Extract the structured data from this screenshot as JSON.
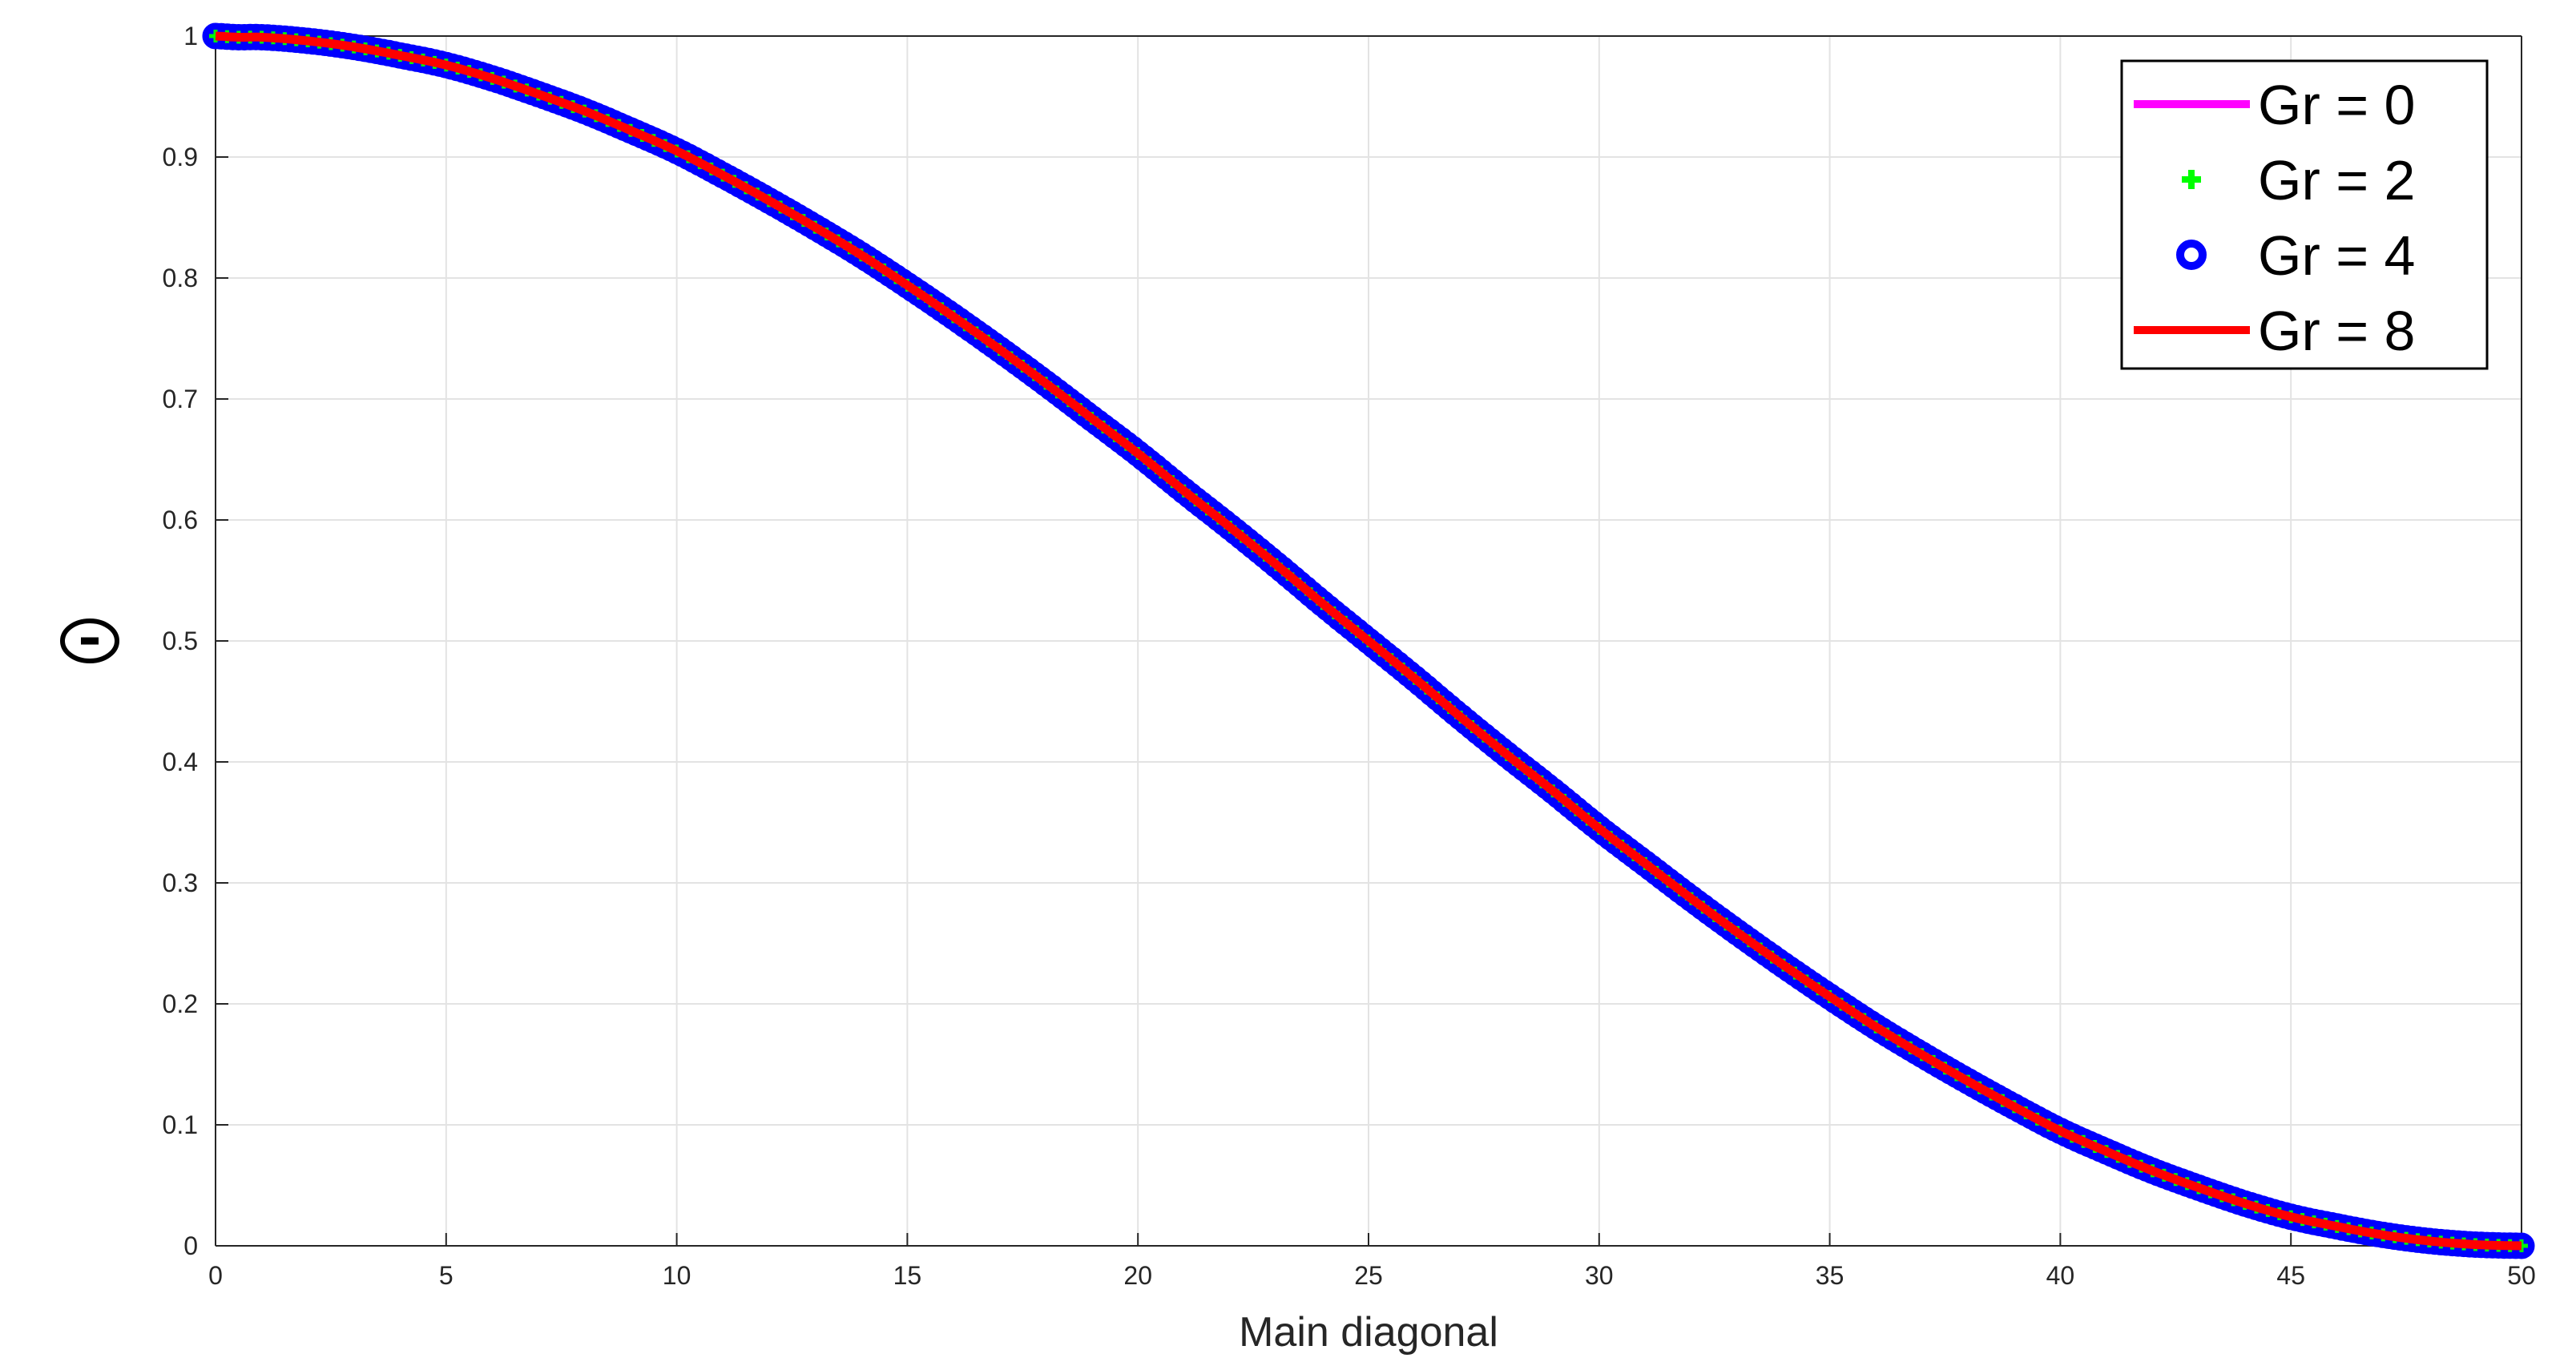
{
  "chart_data": {
    "type": "line",
    "title": "",
    "xlabel": "Main diagonal",
    "ylabel": "Θ",
    "xlim": [
      0,
      50
    ],
    "ylim": [
      0,
      1
    ],
    "xticks": [
      0,
      5,
      10,
      15,
      20,
      25,
      30,
      35,
      40,
      45,
      50
    ],
    "yticks": [
      0,
      0.1,
      0.2,
      0.3,
      0.4,
      0.5,
      0.6,
      0.7,
      0.8,
      0.9,
      1
    ],
    "xtick_labels": [
      "0",
      "5",
      "10",
      "15",
      "20",
      "25",
      "30",
      "35",
      "40",
      "45",
      "50"
    ],
    "ytick_labels": [
      "0",
      "0.1",
      "0.2",
      "0.3",
      "0.4",
      "0.5",
      "0.6",
      "0.7",
      "0.8",
      "0.9",
      "1"
    ],
    "grid": true,
    "legend_position": "top-right",
    "x": [
      0,
      0.5,
      1,
      2,
      3,
      4,
      5,
      6,
      7,
      8,
      9,
      10,
      11,
      12,
      13,
      14,
      15,
      16,
      17,
      18,
      19,
      20,
      21,
      22,
      23,
      24,
      25,
      26,
      27,
      28,
      29,
      30,
      31,
      32,
      33,
      34,
      35,
      36,
      37,
      38,
      39,
      40,
      41,
      42,
      43,
      44,
      45,
      46,
      47,
      48,
      49,
      50
    ],
    "series": [
      {
        "name": "Gr = 0",
        "style": "line",
        "color": "#ff00ff",
        "values": [
          1,
          0.999,
          0.999,
          0.996,
          0.991,
          0.984,
          0.976,
          0.965,
          0.952,
          0.938,
          0.922,
          0.905,
          0.885,
          0.864,
          0.842,
          0.819,
          0.794,
          0.768,
          0.741,
          0.713,
          0.684,
          0.655,
          0.624,
          0.594,
          0.563,
          0.531,
          0.5,
          0.469,
          0.437,
          0.406,
          0.376,
          0.345,
          0.316,
          0.287,
          0.259,
          0.232,
          0.206,
          0.181,
          0.158,
          0.136,
          0.115,
          0.095,
          0.078,
          0.062,
          0.048,
          0.035,
          0.024,
          0.016,
          0.009,
          0.004,
          0.001,
          0
        ]
      },
      {
        "name": "Gr = 2",
        "style": "markers-plus",
        "color": "#00ff00",
        "values": [
          1,
          0.999,
          0.999,
          0.996,
          0.991,
          0.984,
          0.976,
          0.965,
          0.952,
          0.938,
          0.922,
          0.905,
          0.885,
          0.864,
          0.842,
          0.819,
          0.794,
          0.768,
          0.741,
          0.713,
          0.684,
          0.655,
          0.624,
          0.594,
          0.563,
          0.531,
          0.5,
          0.469,
          0.437,
          0.406,
          0.376,
          0.345,
          0.316,
          0.287,
          0.259,
          0.232,
          0.206,
          0.181,
          0.158,
          0.136,
          0.115,
          0.095,
          0.078,
          0.062,
          0.048,
          0.035,
          0.024,
          0.016,
          0.009,
          0.004,
          0.001,
          0
        ]
      },
      {
        "name": "Gr = 4",
        "style": "markers-circle",
        "color": "#0000ff",
        "values": [
          1,
          0.999,
          0.999,
          0.996,
          0.991,
          0.984,
          0.976,
          0.965,
          0.952,
          0.938,
          0.922,
          0.905,
          0.885,
          0.864,
          0.842,
          0.819,
          0.794,
          0.768,
          0.741,
          0.713,
          0.684,
          0.655,
          0.624,
          0.594,
          0.563,
          0.531,
          0.5,
          0.469,
          0.437,
          0.406,
          0.376,
          0.345,
          0.316,
          0.287,
          0.259,
          0.232,
          0.206,
          0.181,
          0.158,
          0.136,
          0.115,
          0.095,
          0.078,
          0.062,
          0.048,
          0.035,
          0.024,
          0.016,
          0.009,
          0.004,
          0.001,
          0
        ]
      },
      {
        "name": "Gr = 8",
        "style": "line",
        "color": "#ff0000",
        "values": [
          1,
          0.999,
          0.999,
          0.996,
          0.991,
          0.984,
          0.976,
          0.965,
          0.952,
          0.938,
          0.922,
          0.905,
          0.885,
          0.864,
          0.842,
          0.819,
          0.794,
          0.768,
          0.741,
          0.713,
          0.684,
          0.655,
          0.624,
          0.594,
          0.563,
          0.531,
          0.5,
          0.469,
          0.437,
          0.406,
          0.376,
          0.345,
          0.316,
          0.287,
          0.259,
          0.232,
          0.206,
          0.181,
          0.158,
          0.136,
          0.115,
          0.095,
          0.078,
          0.062,
          0.048,
          0.035,
          0.024,
          0.016,
          0.009,
          0.004,
          0.001,
          0
        ]
      }
    ]
  }
}
